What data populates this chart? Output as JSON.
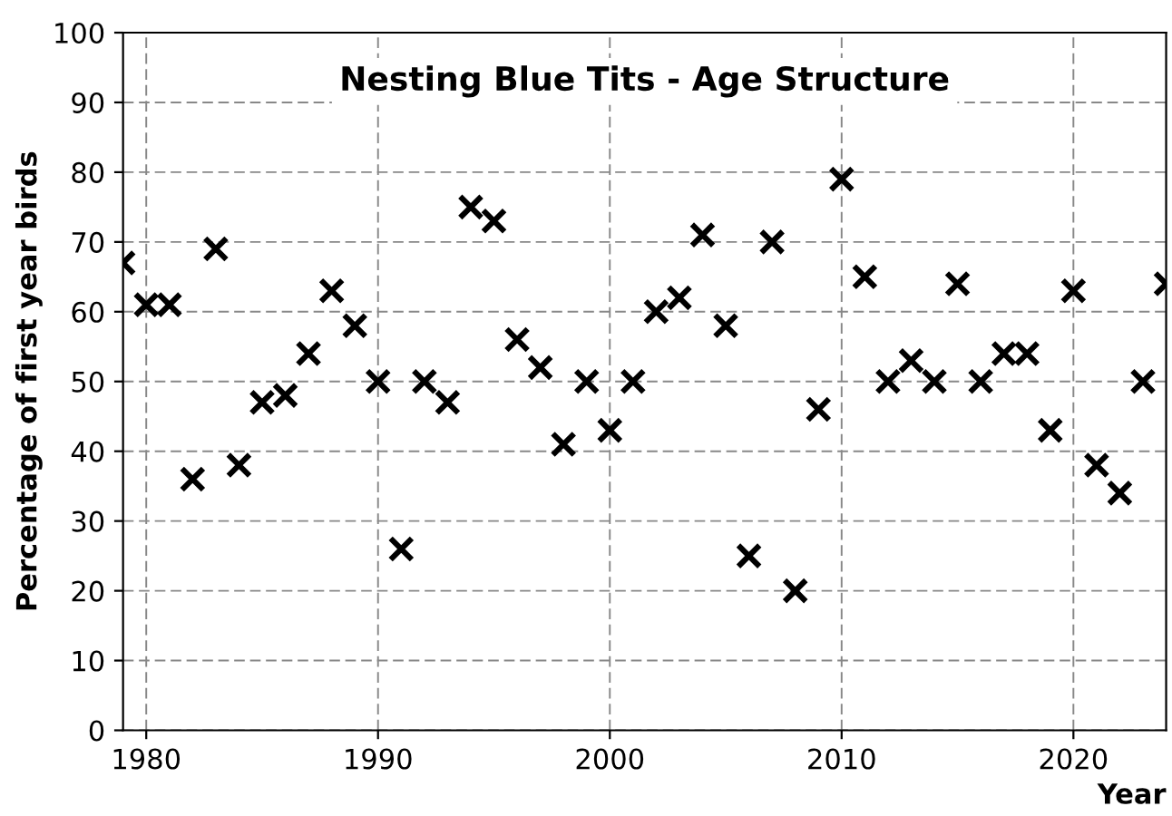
{
  "chart_data": {
    "type": "scatter",
    "title": "Nesting Blue Tits - Age Structure",
    "xlabel": "Year",
    "ylabel": "Percentage of first year birds",
    "x": [
      1979,
      1980,
      1981,
      1982,
      1983,
      1984,
      1985,
      1986,
      1987,
      1988,
      1989,
      1990,
      1991,
      1992,
      1993,
      1994,
      1995,
      1996,
      1997,
      1998,
      1999,
      2000,
      2001,
      2002,
      2003,
      2004,
      2005,
      2006,
      2007,
      2008,
      2009,
      2010,
      2011,
      2012,
      2013,
      2014,
      2015,
      2016,
      2017,
      2018,
      2019,
      2020,
      2021,
      2022,
      2023,
      2024
    ],
    "series": [
      {
        "color": "#000000",
        "values": [
          67,
          61,
          61,
          36,
          69,
          38,
          47,
          48,
          54,
          63,
          58,
          50,
          26,
          50,
          47,
          75,
          73,
          56,
          52,
          41,
          50,
          43,
          50,
          60,
          62,
          71,
          58,
          25,
          70,
          20,
          46,
          79,
          65,
          50,
          53,
          50,
          64,
          50,
          54,
          54,
          43,
          63,
          38,
          34,
          50,
          64
        ]
      }
    ],
    "xlim": [
      1979,
      2024
    ],
    "xticks": [
      1980,
      1990,
      2000,
      2010,
      2020
    ],
    "ylim": [
      0,
      100
    ],
    "yticks": [
      0,
      10,
      20,
      30,
      40,
      50,
      60,
      70,
      80,
      90,
      100
    ],
    "grid": true,
    "marker": "cross"
  }
}
